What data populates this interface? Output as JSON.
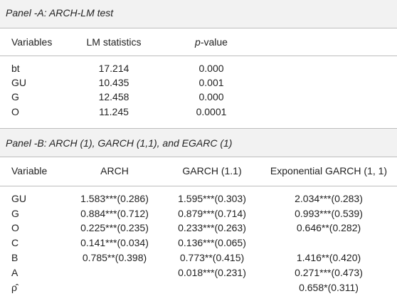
{
  "panelA": {
    "title": "Panel -A: ARCH-LM test",
    "headers": {
      "variables": "Variables",
      "lm": "LM statistics",
      "p_italic": "p",
      "p_rest": "-value"
    },
    "rows": [
      {
        "var": "bt",
        "lm": "17.214",
        "p": "0.000"
      },
      {
        "var": "GU",
        "lm": "10.435",
        "p": "0.001"
      },
      {
        "var": "G",
        "lm": "12.458",
        "p": "0.000"
      },
      {
        "var": "O",
        "lm": "11.245",
        "p": "0.0001"
      }
    ]
  },
  "panelB": {
    "title": "Panel -B: ARCH (1), GARCH (1,1), and EGARC (1)",
    "headers": [
      "Variable",
      "ARCH",
      "GARCH (1.1)",
      "Exponential GARCH (1, 1)"
    ],
    "rows": [
      {
        "var": "GU",
        "arch": "1.583***(0.286)",
        "garch": "1.595***(0.303)",
        "egarch": "2.034***(0.283)"
      },
      {
        "var": "G",
        "arch": "0.884***(0.712)",
        "garch": "0.879***(0.714)",
        "egarch": "0.993***(0.539)"
      },
      {
        "var": "O",
        "arch": "0.225***(0.235)",
        "garch": "0.233***(0.263)",
        "egarch": "0.646**(0.282)"
      },
      {
        "var": "C",
        "arch": "0.141***(0.034)",
        "garch": "0.136***(0.065)",
        "egarch": ""
      },
      {
        "var": "B",
        "arch": "0.785**(0.398)",
        "garch": "0.773**(0.415)",
        "egarch": "1.416**(0.420)"
      },
      {
        "var": "A",
        "arch": "",
        "garch": "0.018***(0.231)",
        "egarch": "0.271***(0.473)"
      },
      {
        "var": "ρ̂",
        "arch": "",
        "garch": "",
        "egarch": "0.658*(0.311)"
      }
    ]
  }
}
